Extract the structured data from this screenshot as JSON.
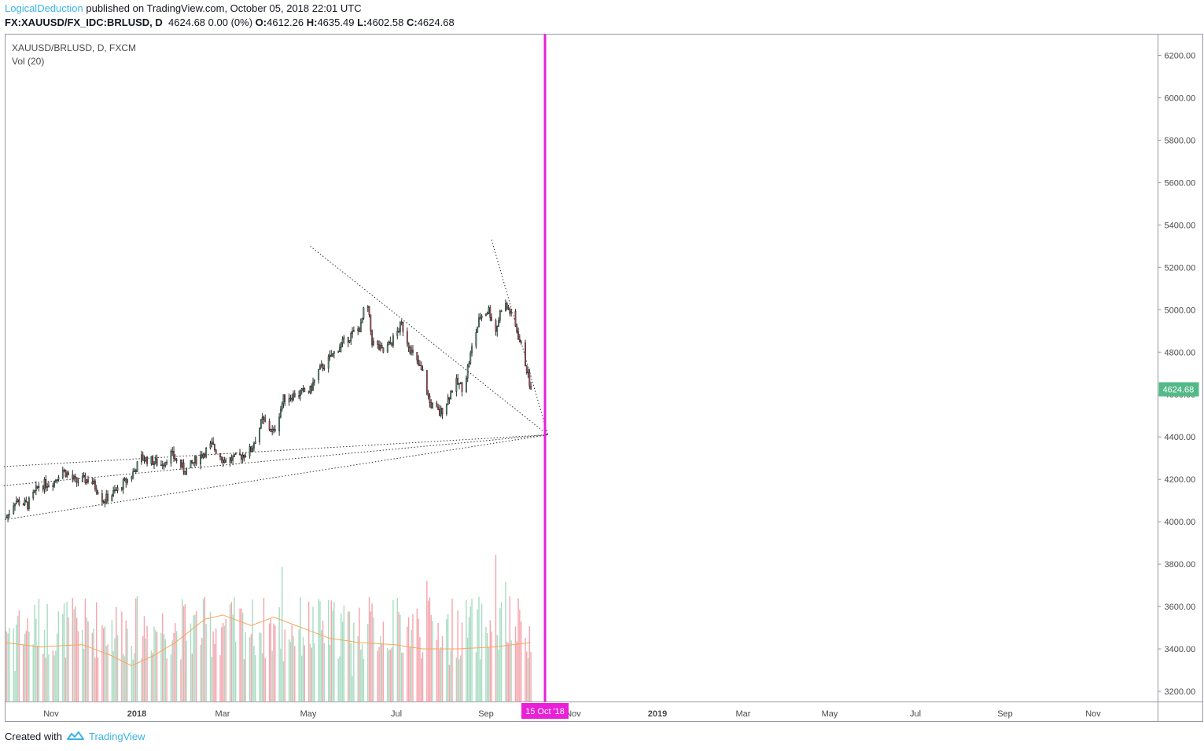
{
  "header": {
    "author": "LogicalDeduction",
    "published_text": "published on TradingView.com, October 05, 2018 22:01 UTC",
    "symbol": "FX:XAUUSD/FX_IDC:BRLUSD, D",
    "last": "4624.68",
    "change": "0.00 (0%)",
    "o_label": "O:",
    "o_value": "4612.26",
    "h_label": "H:",
    "h_value": "4635.49",
    "l_label": "L:",
    "l_value": "4602.58",
    "c_label": "C:",
    "c_value": "4624.68"
  },
  "legend": {
    "title": "XAUUSD/BRLUSD, D, FXCM",
    "volume": "Vol (20)"
  },
  "footer": {
    "created_with": "Created with",
    "brand": "TradingView"
  },
  "colors": {
    "up": "#53b987",
    "down": "#eb4d5c",
    "vol_up": "#a9dcc3",
    "vol_down": "#f5a6ae",
    "vol_ma": "#f7a65a",
    "marker": "#e91fd9",
    "last_price_bg": "#53b987",
    "brand": "#3bb3e4"
  },
  "chart_data": {
    "type": "candlestick",
    "title": "XAUUSD/BRLUSD, D, FXCM",
    "y_axis": {
      "ticks": [
        "6200.00",
        "6000.00",
        "5800.00",
        "5600.00",
        "5400.00",
        "5200.00",
        "5000.00",
        "4800.00",
        "4600.00",
        "4400.00",
        "4200.00",
        "4000.00",
        "3800.00",
        "3600.00",
        "3400.00",
        "3200.00"
      ],
      "range": [
        3150,
        6300
      ]
    },
    "x_axis": {
      "ticks": [
        "Nov",
        "2018",
        "Mar",
        "May",
        "Jul",
        "Sep",
        "Nov",
        "2019",
        "Mar",
        "May",
        "Jul",
        "Sep",
        "Nov"
      ],
      "range": [
        "2017-09-26",
        "2019-12-25"
      ]
    },
    "last_price_label": "4624.68",
    "last_price": 4624.68,
    "marker": {
      "date": "2018-10-15",
      "label": "15 Oct '18"
    },
    "price_path": [
      [
        "2017-09-27",
        4020
      ],
      [
        "2017-10-03",
        4100
      ],
      [
        "2017-10-12",
        4080
      ],
      [
        "2017-10-20",
        4170
      ],
      [
        "2017-10-31",
        4190
      ],
      [
        "2017-11-05",
        4250
      ],
      [
        "2017-11-15",
        4190
      ],
      [
        "2017-11-25",
        4200
      ],
      [
        "2017-12-01",
        4150
      ],
      [
        "2017-12-05",
        4100
      ],
      [
        "2017-12-15",
        4150
      ],
      [
        "2017-12-25",
        4220
      ],
      [
        "2018-01-01",
        4300
      ],
      [
        "2018-01-07",
        4290
      ],
      [
        "2018-01-15",
        4270
      ],
      [
        "2018-01-22",
        4320
      ],
      [
        "2018-02-01",
        4240
      ],
      [
        "2018-02-10",
        4300
      ],
      [
        "2018-02-20",
        4360
      ],
      [
        "2018-03-01",
        4290
      ],
      [
        "2018-03-10",
        4300
      ],
      [
        "2018-03-20",
        4340
      ],
      [
        "2018-03-28",
        4480
      ],
      [
        "2018-04-05",
        4420
      ],
      [
        "2018-04-12",
        4580
      ],
      [
        "2018-04-20",
        4600
      ],
      [
        "2018-05-01",
        4620
      ],
      [
        "2018-05-07",
        4710
      ],
      [
        "2018-05-15",
        4770
      ],
      [
        "2018-05-22",
        4830
      ],
      [
        "2018-05-30",
        4880
      ],
      [
        "2018-06-06",
        4920
      ],
      [
        "2018-06-10",
        5060
      ],
      [
        "2018-06-14",
        4850
      ],
      [
        "2018-06-22",
        4800
      ],
      [
        "2018-06-28",
        4850
      ],
      [
        "2018-07-05",
        4930
      ],
      [
        "2018-07-12",
        4800
      ],
      [
        "2018-07-20",
        4700
      ],
      [
        "2018-07-25",
        4560
      ],
      [
        "2018-08-01",
        4510
      ],
      [
        "2018-08-05",
        4550
      ],
      [
        "2018-08-12",
        4660
      ],
      [
        "2018-08-18",
        4630
      ],
      [
        "2018-08-25",
        4850
      ],
      [
        "2018-08-30",
        4970
      ],
      [
        "2018-09-05",
        5000
      ],
      [
        "2018-09-10",
        4900
      ],
      [
        "2018-09-15",
        5040
      ],
      [
        "2018-09-20",
        4990
      ],
      [
        "2018-09-25",
        4900
      ],
      [
        "2018-09-30",
        4780
      ],
      [
        "2018-10-05",
        4624.68
      ]
    ],
    "trend_lines": [
      [
        [
          "2018-05-01",
          5300
        ],
        [
          "2018-10-17",
          4410
        ]
      ],
      [
        [
          "2018-09-07",
          5330
        ],
        [
          "2018-10-17",
          4410
        ]
      ],
      [
        [
          "2017-09-25",
          4260
        ],
        [
          "2018-10-17",
          4410
        ]
      ],
      [
        [
          "2017-09-25",
          4170
        ],
        [
          "2018-10-17",
          4410
        ]
      ],
      [
        [
          "2017-09-26",
          4010
        ],
        [
          "2018-10-17",
          4410
        ]
      ]
    ],
    "volume_ma_path": [
      [
        "2017-09-26",
        3430
      ],
      [
        "2017-10-20",
        3410
      ],
      [
        "2017-11-20",
        3420
      ],
      [
        "2017-12-10",
        3370
      ],
      [
        "2017-12-25",
        3320
      ],
      [
        "2018-01-10",
        3370
      ],
      [
        "2018-01-25",
        3430
      ],
      [
        "2018-02-15",
        3540
      ],
      [
        "2018-02-28",
        3560
      ],
      [
        "2018-03-20",
        3510
      ],
      [
        "2018-04-05",
        3550
      ],
      [
        "2018-04-25",
        3500
      ],
      [
        "2018-05-15",
        3450
      ],
      [
        "2018-06-05",
        3430
      ],
      [
        "2018-06-30",
        3420
      ],
      [
        "2018-07-20",
        3400
      ],
      [
        "2018-08-15",
        3400
      ],
      [
        "2018-09-10",
        3410
      ],
      [
        "2018-10-05",
        3430
      ]
    ]
  }
}
